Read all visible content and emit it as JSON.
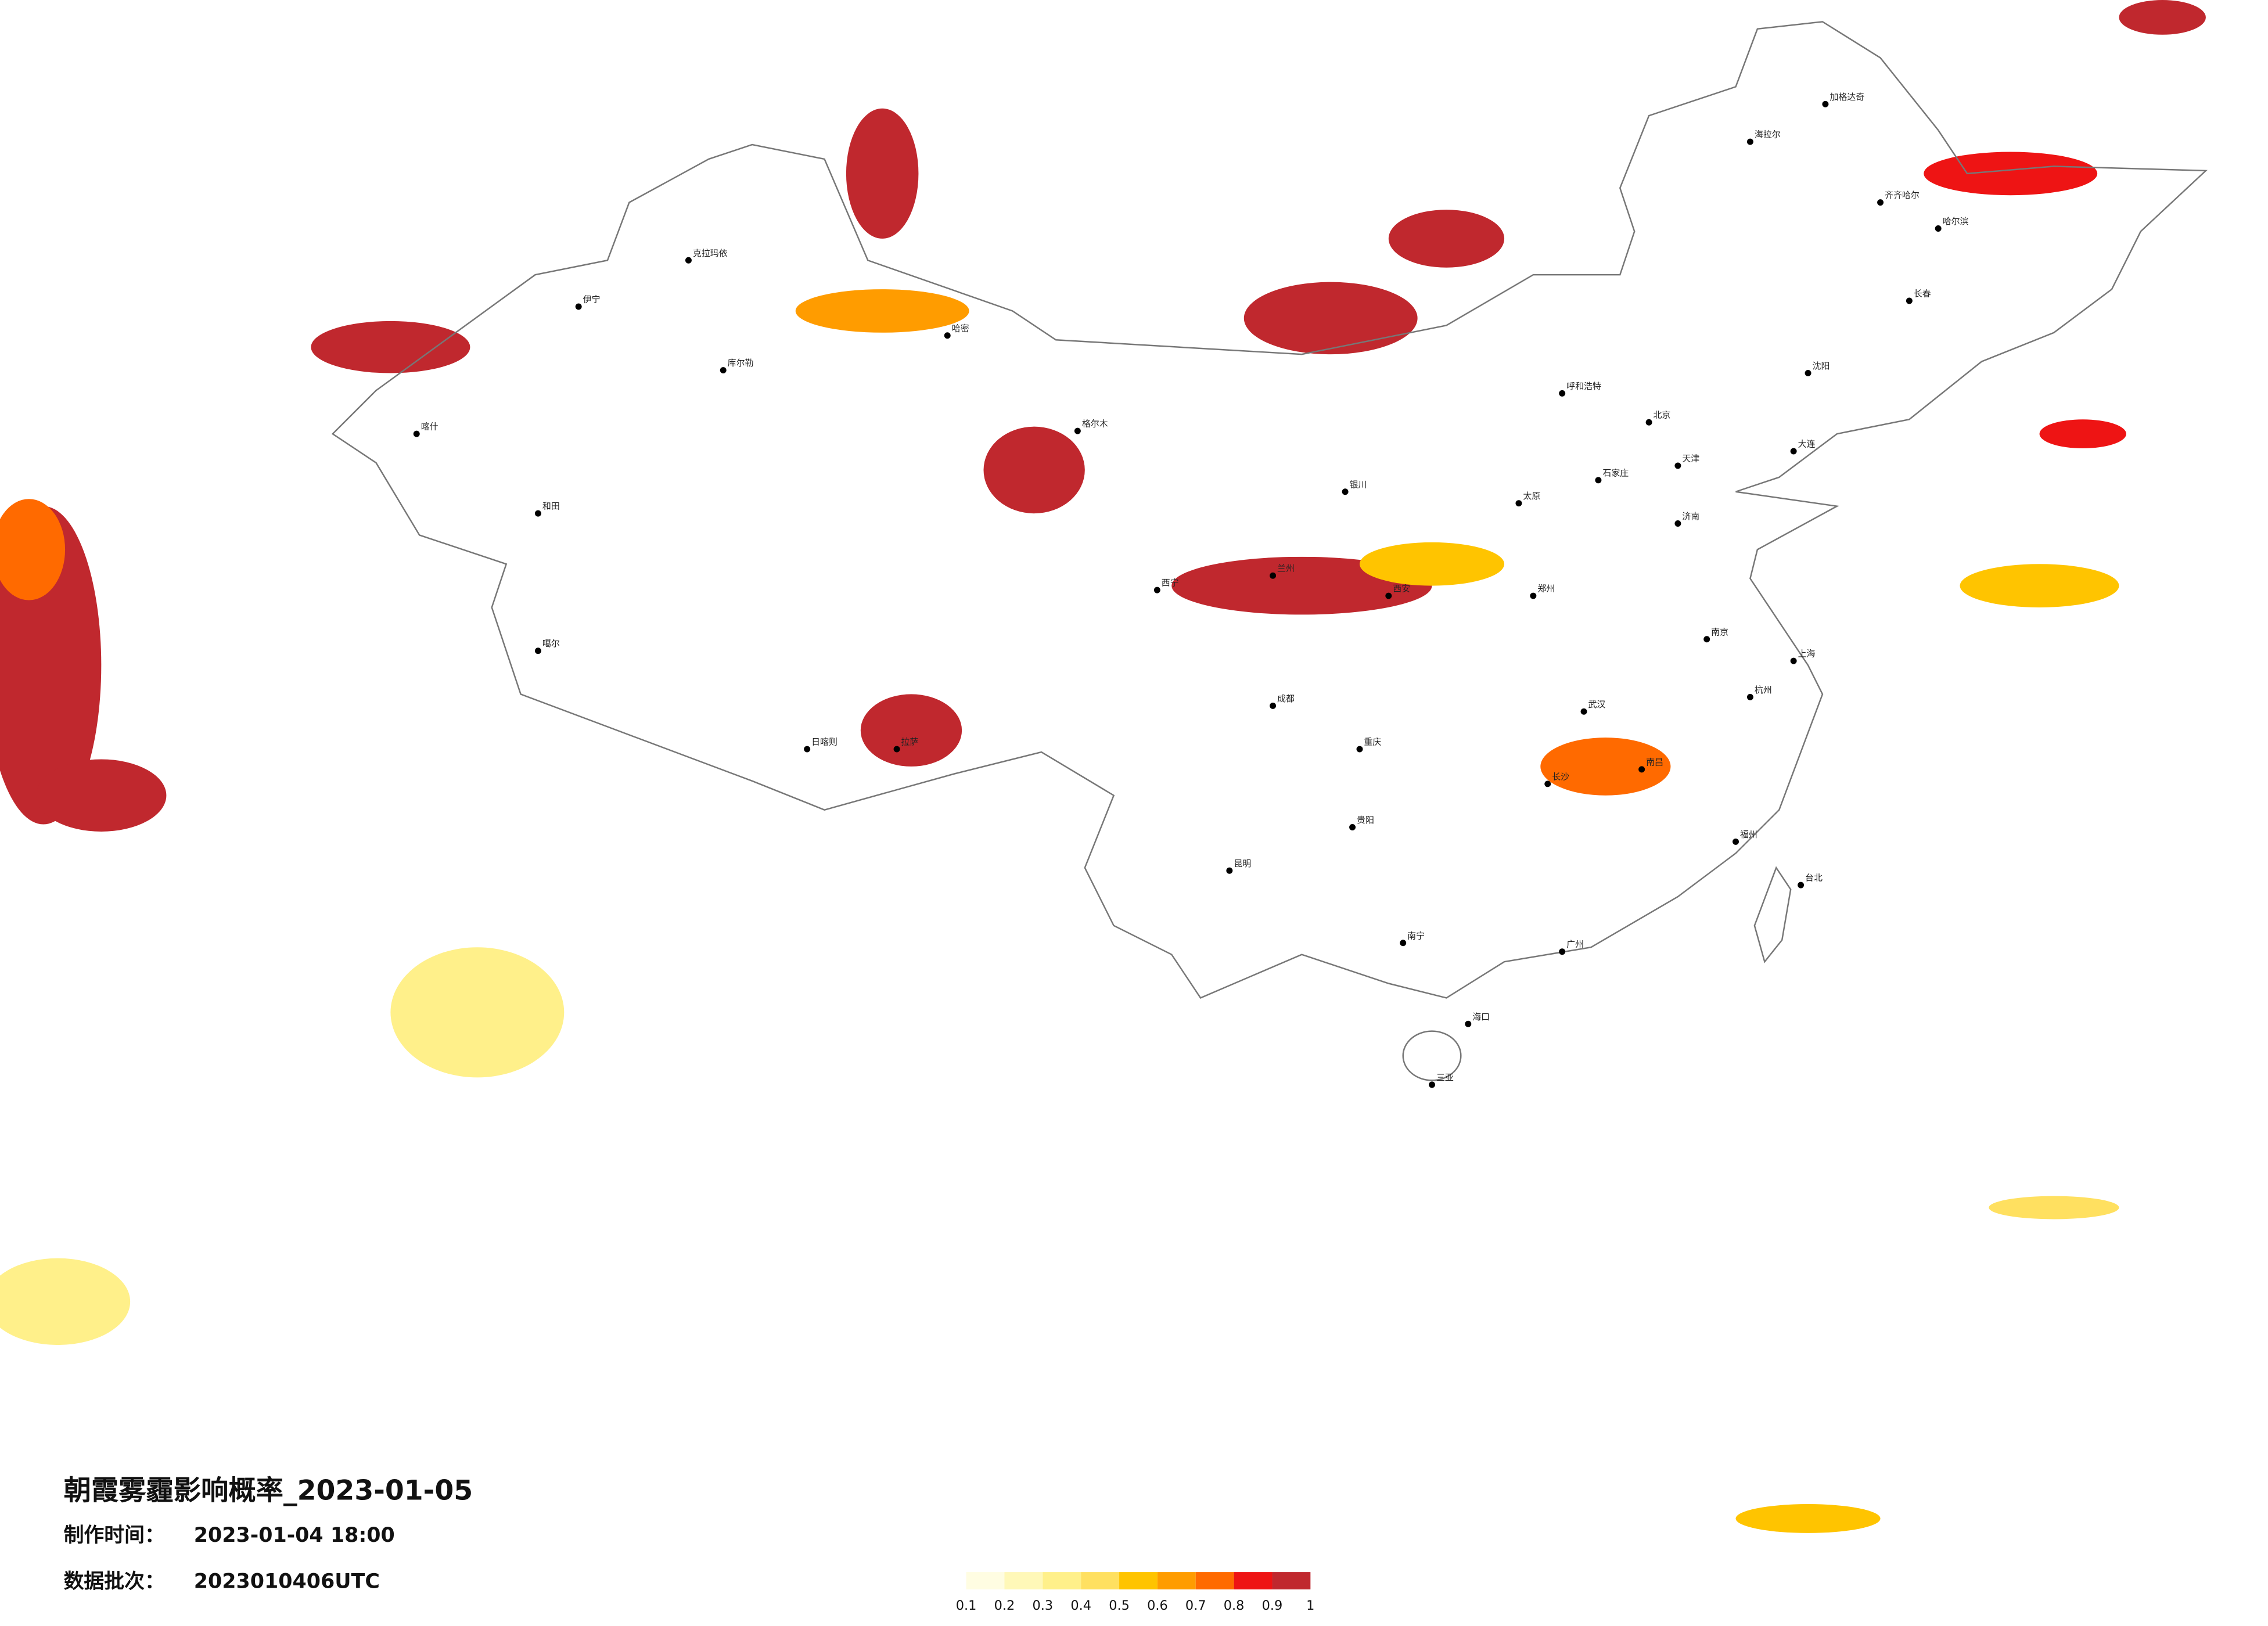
{
  "title": "朝霞雾霾影响概率_2023-01-05",
  "made_label": "制作时间：",
  "made_time": "2023-01-04 18:00",
  "batch_label": "数据批次：",
  "batch": "2023010406UTC",
  "legend": {
    "colors": [
      "#fffde2",
      "#fff8b8",
      "#fff08a",
      "#ffe060",
      "#ffc400",
      "#ff9c00",
      "#ff6a00",
      "#ee1414",
      "#c0282e"
    ],
    "labels": [
      0.1,
      0.2,
      0.3,
      0.4,
      0.5,
      0.6,
      0.7,
      0.8,
      0.9,
      1
    ]
  },
  "cities": [
    "克拉玛依",
    "伊宁",
    "库尔勒",
    "和田",
    "喀什",
    "哈密",
    "噶尔",
    "日喀则",
    "拉萨",
    "格尔木",
    "西宁",
    "兰州",
    "银川",
    "呼和浩特",
    "北京",
    "天津",
    "石家庄",
    "太原",
    "济南",
    "郑州",
    "西安",
    "成都",
    "重庆",
    "昆明",
    "贵阳",
    "南宁",
    "广州",
    "长沙",
    "武汉",
    "南昌",
    "杭州",
    "南京",
    "上海",
    "福州",
    "台北",
    "海口",
    "三亚",
    "哈尔滨",
    "长春",
    "沈阳",
    "大连",
    "齐齐哈尔",
    "海拉尔",
    "加格达奇"
  ]
}
